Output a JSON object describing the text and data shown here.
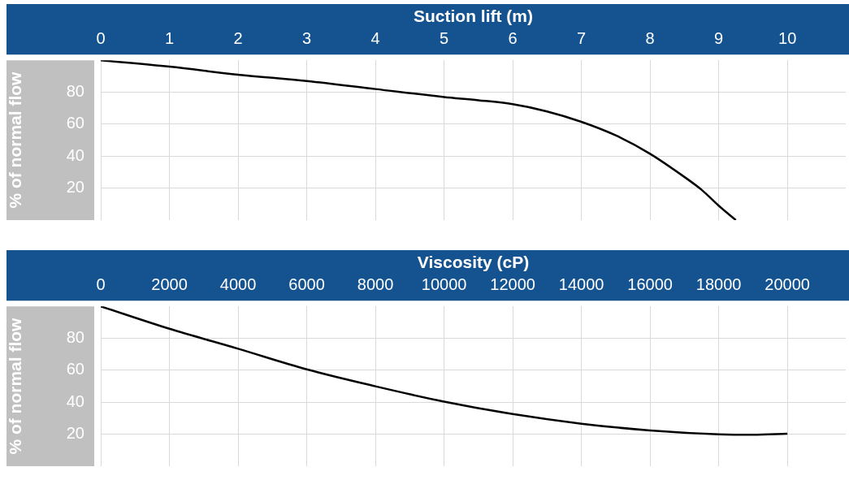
{
  "chart_data": [
    {
      "type": "line",
      "xlabel": "Suction lift (m)",
      "ylabel": "% of normal flow",
      "x": [
        0,
        1,
        2,
        3,
        4,
        5,
        5.5,
        6,
        6.5,
        7,
        7.5,
        8,
        8.5,
        8.75,
        9,
        9.25
      ],
      "series": [
        {
          "color": "#000000",
          "values": [
            100,
            96,
            91,
            87,
            82,
            77,
            75,
            72.5,
            68,
            61.5,
            53,
            41.5,
            27,
            19,
            9,
            0
          ]
        }
      ],
      "xlim": [
        0,
        10.85
      ],
      "xticks": [
        0,
        1,
        2,
        3,
        4,
        5,
        6,
        7,
        8,
        9,
        10
      ],
      "ylim": [
        0,
        100
      ],
      "yticks": [
        20,
        40,
        60,
        80
      ],
      "grid": true
    },
    {
      "type": "line",
      "xlabel": "Viscosity (cP)",
      "ylabel": "% of normal flow",
      "x": [
        0,
        2000,
        4000,
        6000,
        8000,
        10000,
        12000,
        14000,
        16000,
        18000,
        19000,
        20000
      ],
      "series": [
        {
          "color": "#000000",
          "values": [
            100,
            86,
            73.5,
            60.6,
            50,
            40.4,
            32.6,
            26.6,
            22.4,
            20,
            19.7,
            20.3
          ]
        }
      ],
      "xlim": [
        0,
        21700
      ],
      "xticks": [
        0,
        2000,
        4000,
        6000,
        8000,
        10000,
        12000,
        14000,
        16000,
        18000,
        20000
      ],
      "ylim": [
        0,
        100
      ],
      "yticks": [
        20,
        40,
        60,
        80
      ],
      "grid": true
    }
  ]
}
